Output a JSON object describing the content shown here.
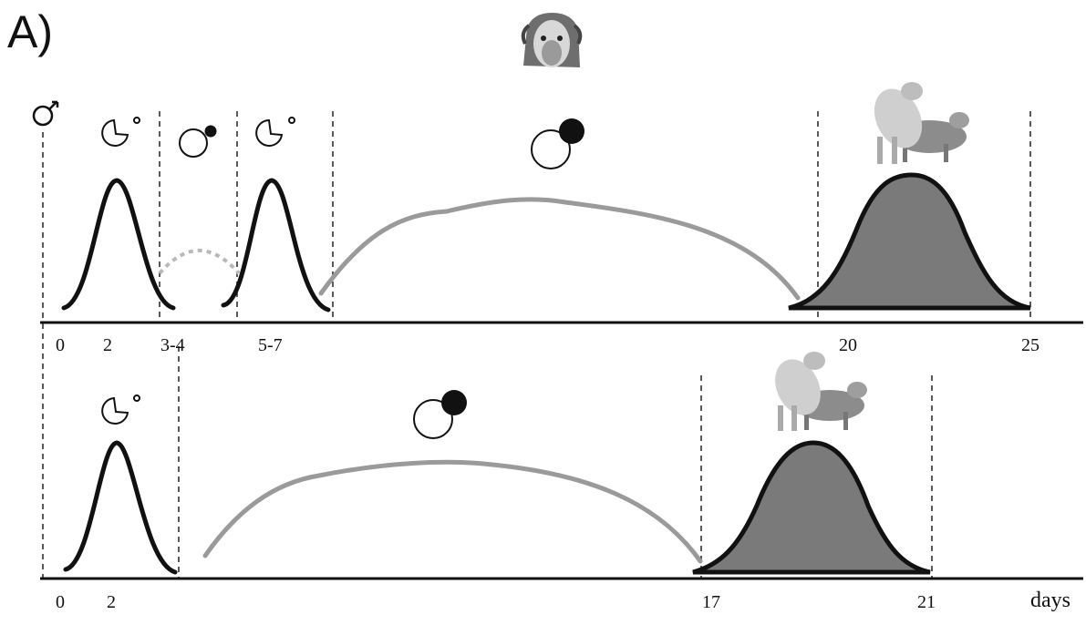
{
  "panel_label": "A)",
  "male_symbol": "male-symbol-icon",
  "colors": {
    "curve": "#111111",
    "progesterone": "#9a9a9a",
    "dashed_grey": "#b8b8b8",
    "estrus_fill": "#7a7a7a",
    "axis": "#111111"
  },
  "top_timeline": {
    "ticks": [
      "0",
      "2",
      "3-4",
      "5-7",
      "20",
      "25"
    ],
    "icons": [
      "ovary-short-cycle-icon",
      "ovary-small-cl-icon",
      "ovary-short-cycle-icon",
      "ovary-corpus-luteum-icon",
      "sheep-mating-icon"
    ]
  },
  "bottom_timeline": {
    "ticks": [
      "0",
      "2",
      "17",
      "21"
    ],
    "axis_unit": "days",
    "icons": [
      "ovary-short-cycle-icon",
      "ovary-corpus-luteum-icon",
      "sheep-mating-icon"
    ]
  },
  "header_icon": "ram-head-icon"
}
